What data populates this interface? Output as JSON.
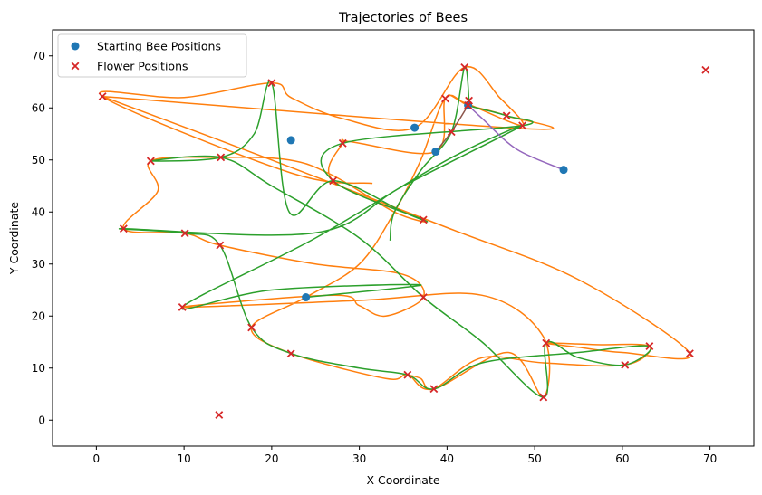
{
  "chart_data": {
    "type": "scatter",
    "title": "Trajectories of Bees",
    "xlabel": "X Coordinate",
    "ylabel": "Y Coordinate",
    "xlim": [
      -5,
      75
    ],
    "ylim": [
      -5,
      75
    ],
    "xticks": [
      0,
      10,
      20,
      30,
      40,
      50,
      60,
      70
    ],
    "yticks": [
      0,
      10,
      20,
      30,
      40,
      50,
      60,
      70
    ],
    "grid": false,
    "legend": {
      "placement": "top-left",
      "entries": [
        {
          "label": "Starting Bee Positions",
          "marker": "circle",
          "color": "#1f77b4"
        },
        {
          "label": "Flower Positions",
          "marker": "x",
          "color": "#d62728"
        }
      ]
    },
    "series": [
      {
        "name": "Starting Bee Positions",
        "kind": "scatter",
        "marker": "circle",
        "color": "#1f77b4",
        "points": [
          [
            22.2,
            53.8
          ],
          [
            36.3,
            56.2
          ],
          [
            38.7,
            51.6
          ],
          [
            53.3,
            48.1
          ],
          [
            23.9,
            23.6
          ],
          [
            42.4,
            60.5
          ]
        ]
      },
      {
        "name": "Flower Positions",
        "kind": "scatter",
        "marker": "x",
        "color": "#d62728",
        "points": [
          [
            0.7,
            62.2
          ],
          [
            20.0,
            64.8
          ],
          [
            42.0,
            67.8
          ],
          [
            69.5,
            67.3
          ],
          [
            39.8,
            61.8
          ],
          [
            42.5,
            61.4
          ],
          [
            42.4,
            60.5
          ],
          [
            46.8,
            58.5
          ],
          [
            48.6,
            56.6
          ],
          [
            40.5,
            55.4
          ],
          [
            28.1,
            53.2
          ],
          [
            6.2,
            49.8
          ],
          [
            14.2,
            50.5
          ],
          [
            27.0,
            46.0
          ],
          [
            3.1,
            36.8
          ],
          [
            10.1,
            35.9
          ],
          [
            14.1,
            33.6
          ],
          [
            37.3,
            38.5
          ],
          [
            9.8,
            21.7
          ],
          [
            37.3,
            23.6
          ],
          [
            17.7,
            17.8
          ],
          [
            22.2,
            12.8
          ],
          [
            51.3,
            14.8
          ],
          [
            63.1,
            14.2
          ],
          [
            67.7,
            12.8
          ],
          [
            60.3,
            10.6
          ],
          [
            35.5,
            8.7
          ],
          [
            38.5,
            6.0
          ],
          [
            51.0,
            4.4
          ],
          [
            14.0,
            1.0
          ]
        ]
      }
    ],
    "trajectories": [
      {
        "color": "#ff7f0e",
        "points": [
          [
            31.5,
            45.5
          ],
          [
            22.2,
            47.5
          ],
          [
            0.7,
            62.2
          ],
          [
            10.0,
            62.0
          ],
          [
            20.0,
            64.8
          ],
          [
            22.2,
            62.0
          ],
          [
            28.0,
            58.0
          ],
          [
            36.3,
            56.2
          ],
          [
            42.0,
            67.8
          ],
          [
            46.0,
            62.0
          ],
          [
            48.6,
            56.6
          ],
          [
            42.0,
            61.0
          ],
          [
            39.8,
            61.8
          ],
          [
            38.7,
            51.6
          ],
          [
            29.0,
            53.5
          ],
          [
            28.1,
            53.2
          ],
          [
            27.0,
            46.0
          ],
          [
            37.3,
            38.5
          ],
          [
            34.0,
            40.0
          ],
          [
            27.0,
            47.0
          ],
          [
            22.0,
            50.0
          ],
          [
            14.2,
            50.5
          ],
          [
            6.2,
            49.8
          ],
          [
            7.0,
            44.0
          ],
          [
            3.1,
            36.8
          ],
          [
            10.1,
            35.9
          ],
          [
            14.1,
            33.6
          ],
          [
            25.0,
            30.0
          ],
          [
            35.0,
            28.0
          ],
          [
            37.3,
            23.6
          ],
          [
            33.0,
            20.0
          ],
          [
            30.0,
            22.0
          ],
          [
            27.0,
            24.0
          ],
          [
            9.8,
            21.7
          ],
          [
            30.0,
            23.0
          ],
          [
            44.0,
            24.0
          ],
          [
            51.0,
            16.0
          ],
          [
            51.0,
            4.4
          ],
          [
            47.0,
            13.0
          ],
          [
            38.5,
            6.0
          ],
          [
            35.5,
            8.7
          ],
          [
            33.0,
            8.0
          ],
          [
            22.2,
            12.8
          ],
          [
            17.7,
            17.8
          ],
          [
            23.9,
            23.6
          ],
          [
            30.0,
            30.0
          ],
          [
            34.0,
            40.0
          ],
          [
            37.0,
            50.0
          ],
          [
            39.8,
            61.8
          ],
          [
            42.4,
            60.5
          ],
          [
            46.8,
            58.5
          ],
          [
            49.0,
            56.0
          ],
          [
            0.7,
            62.2
          ]
        ]
      },
      {
        "color": "#ff7f0e",
        "points": [
          [
            0.7,
            62.2
          ],
          [
            20.0,
            50.0
          ],
          [
            40.0,
            37.0
          ],
          [
            55.0,
            27.0
          ],
          [
            67.7,
            12.8
          ],
          [
            60.0,
            13.0
          ],
          [
            55.0,
            14.0
          ],
          [
            51.3,
            14.8
          ],
          [
            57.0,
            14.5
          ],
          [
            63.1,
            14.2
          ],
          [
            60.3,
            10.6
          ],
          [
            51.0,
            11.0
          ],
          [
            44.0,
            12.0
          ],
          [
            38.5,
            6.0
          ],
          [
            37.0,
            8.0
          ],
          [
            35.5,
            8.7
          ]
        ]
      },
      {
        "color": "#2ca02c",
        "points": [
          [
            33.5,
            34.5
          ],
          [
            34.0,
            40.0
          ],
          [
            37.0,
            48.0
          ],
          [
            40.5,
            55.4
          ],
          [
            42.0,
            67.8
          ],
          [
            42.5,
            61.4
          ],
          [
            42.4,
            60.5
          ],
          [
            46.8,
            58.5
          ],
          [
            48.6,
            56.6
          ],
          [
            28.1,
            53.2
          ],
          [
            27.0,
            46.0
          ],
          [
            37.3,
            38.5
          ],
          [
            35.0,
            40.0
          ],
          [
            27.0,
            46.0
          ],
          [
            22.0,
            40.0
          ],
          [
            20.0,
            64.8
          ],
          [
            18.0,
            55.0
          ],
          [
            14.2,
            50.5
          ],
          [
            6.2,
            49.8
          ],
          [
            14.2,
            50.5
          ],
          [
            20.0,
            45.0
          ],
          [
            30.0,
            35.0
          ],
          [
            37.3,
            23.6
          ],
          [
            44.0,
            15.0
          ],
          [
            51.0,
            4.4
          ],
          [
            51.3,
            14.8
          ],
          [
            55.0,
            12.0
          ],
          [
            60.3,
            10.6
          ],
          [
            63.1,
            14.2
          ],
          [
            55.0,
            13.0
          ],
          [
            44.0,
            11.0
          ],
          [
            38.5,
            6.0
          ],
          [
            35.5,
            8.7
          ],
          [
            30.0,
            10.0
          ],
          [
            22.2,
            12.8
          ],
          [
            17.7,
            17.8
          ],
          [
            14.1,
            33.6
          ],
          [
            10.1,
            35.9
          ],
          [
            3.1,
            36.8
          ],
          [
            25.0,
            36.0
          ],
          [
            35.0,
            45.0
          ],
          [
            48.6,
            56.6
          ],
          [
            40.0,
            50.0
          ],
          [
            25.0,
            35.0
          ],
          [
            9.8,
            21.7
          ],
          [
            20.0,
            25.0
          ],
          [
            37.0,
            26.0
          ],
          [
            23.9,
            23.6
          ]
        ]
      },
      {
        "color": "#9467bd",
        "points": [
          [
            53.3,
            48.1
          ],
          [
            48.0,
            52.0
          ],
          [
            44.0,
            58.0
          ],
          [
            42.4,
            60.5
          ]
        ]
      },
      {
        "color": "#8c564b",
        "points": [
          [
            38.7,
            51.6
          ],
          [
            40.5,
            55.4
          ],
          [
            42.4,
            60.5
          ]
        ]
      }
    ]
  }
}
